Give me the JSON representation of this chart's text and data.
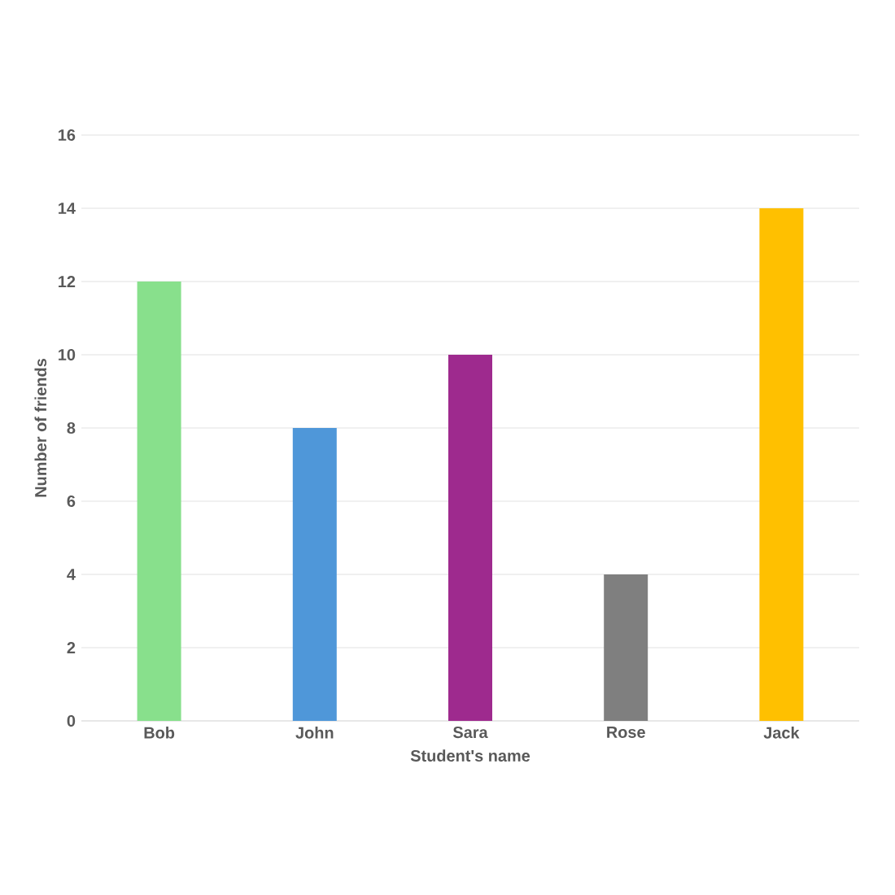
{
  "chart_data": {
    "type": "bar",
    "xlabel": "Student's name",
    "ylabel": "Number of friends",
    "categories": [
      "Bob",
      "John",
      "Sara",
      "Rose",
      "Jack"
    ],
    "values": [
      12,
      8,
      10,
      4,
      14
    ],
    "colors": [
      "#88e08c",
      "#4f97d9",
      "#9e2a8e",
      "#7f7f7f",
      "#ffc000"
    ],
    "ylim": [
      0,
      16
    ],
    "yticks": [
      0,
      2,
      4,
      6,
      8,
      10,
      12,
      14,
      16
    ],
    "grid": "y"
  }
}
